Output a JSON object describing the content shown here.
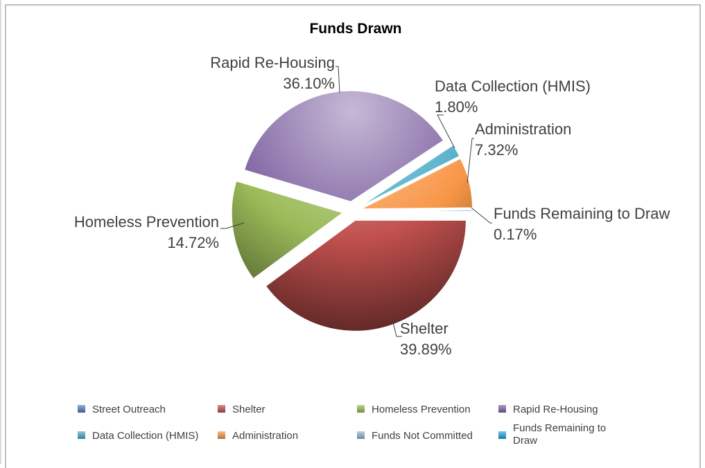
{
  "chart_data": {
    "type": "pie",
    "title": "Funds Drawn",
    "slices": [
      {
        "label": "Street Outreach",
        "value": 0.0,
        "value_label": "",
        "color": "#4f81bd"
      },
      {
        "label": "Shelter",
        "value": 39.89,
        "value_label": "39.89%",
        "color": "#c0504d"
      },
      {
        "label": "Homeless Prevention",
        "value": 14.72,
        "value_label": "14.72%",
        "color": "#9bbb59"
      },
      {
        "label": "Rapid Re-Housing",
        "value": 36.1,
        "value_label": "36.10%",
        "color": "#8064a2"
      },
      {
        "label": "Data Collection (HMIS)",
        "value": 1.8,
        "value_label": "1.80%",
        "color": "#4bacc6"
      },
      {
        "label": "Administration",
        "value": 7.32,
        "value_label": "7.32%",
        "color": "#f79646"
      },
      {
        "label": "Funds Not Committed",
        "value": 0.0,
        "value_label": "",
        "color": "#95b3d7"
      },
      {
        "label": "Funds Remaining to Draw",
        "value": 0.17,
        "value_label": "0.17%",
        "color": "#1fa7e0"
      }
    ],
    "legend": {
      "position": "bottom",
      "entries": [
        {
          "label": "Street Outreach",
          "color": "#4f81bd"
        },
        {
          "label": "Shelter",
          "color": "#c0504d"
        },
        {
          "label": "Homeless Prevention",
          "color": "#9bbb59"
        },
        {
          "label": "Rapid Re-Housing",
          "color": "#8064a2"
        },
        {
          "label": "Data Collection (HMIS)",
          "color": "#4bacc6"
        },
        {
          "label": "Administration",
          "color": "#f79646"
        },
        {
          "label": "Funds Not Committed",
          "color": "#95b3d7"
        },
        {
          "label": "Funds Remaining to Draw",
          "color": "#1fa7e0"
        }
      ]
    }
  }
}
